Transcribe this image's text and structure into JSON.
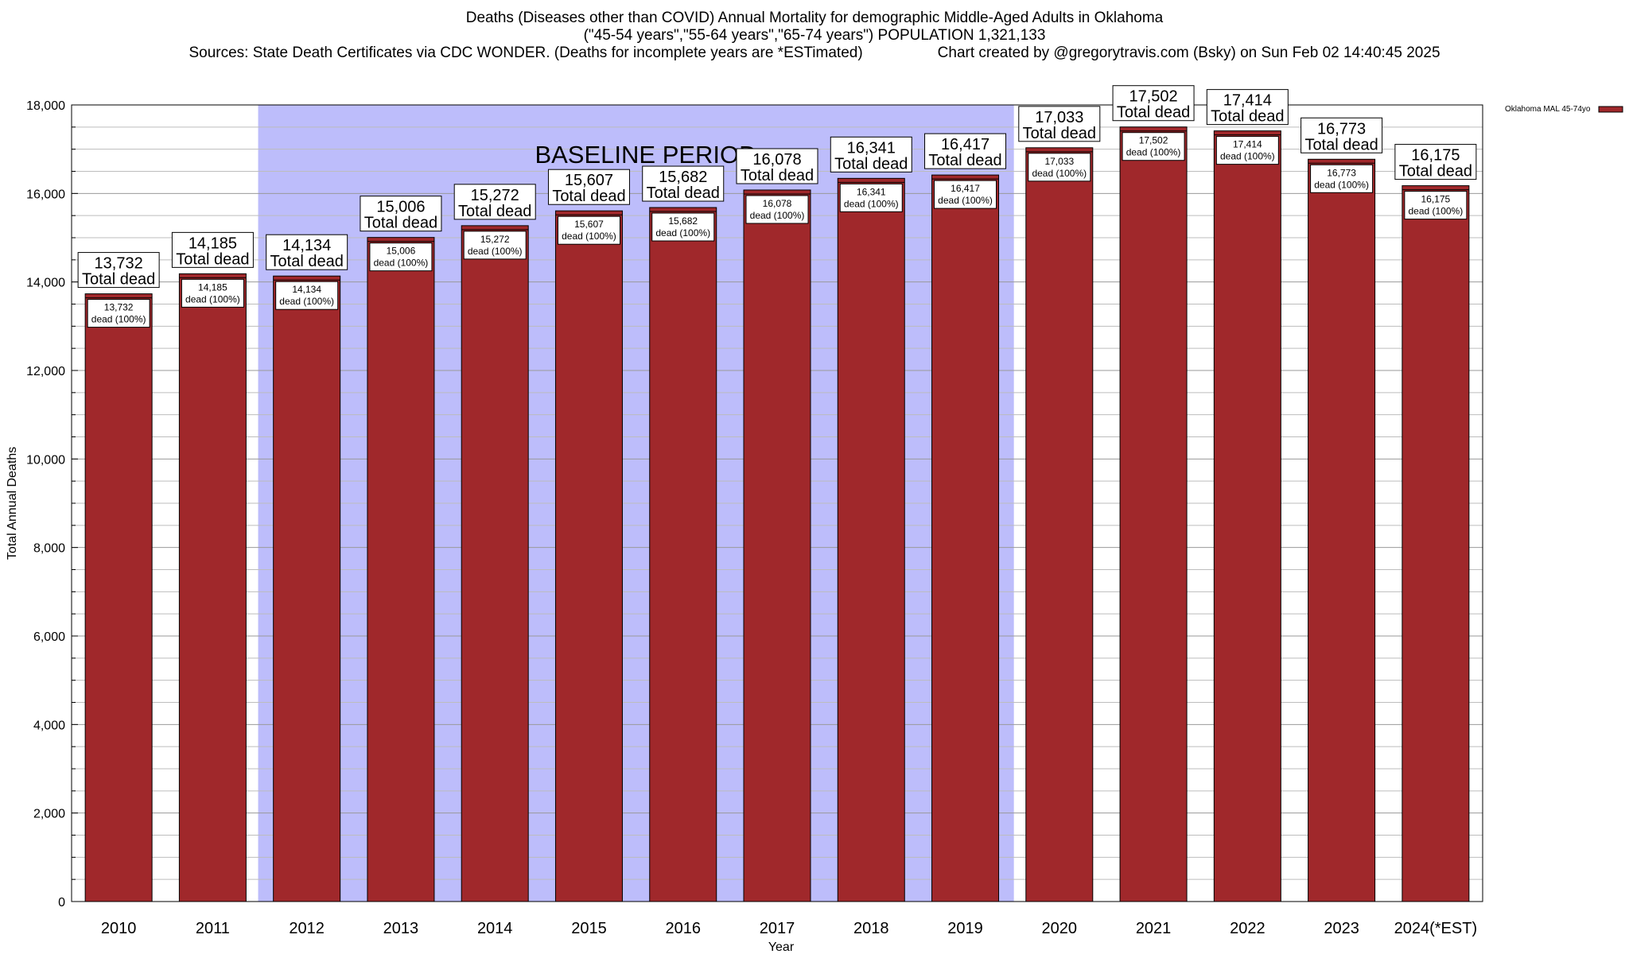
{
  "header": {
    "title_line1": "Deaths (Diseases other than COVID) Annual Mortality for demographic Middle-Aged Adults in Oklahoma",
    "title_line2": "(\"45-54 years\",\"55-64 years\",\"65-74 years\") POPULATION 1,321,133",
    "sources": "Sources: State Death Certificates via CDC WONDER. (Deaths for incomplete years are *ESTimated)",
    "credit": "Chart created by @gregorytravis.com (Bsky) on Sun Feb 02 14:40:45 2025"
  },
  "chart_data": {
    "type": "bar",
    "xlabel": "Year",
    "ylabel": "Total Annual Deaths",
    "ylim": [
      0,
      18000
    ],
    "yticks": [
      0,
      2000,
      4000,
      6000,
      8000,
      10000,
      12000,
      14000,
      16000,
      18000
    ],
    "ytick_labels": [
      "0",
      "2,000",
      "4,000",
      "6,000",
      "8,000",
      "10,000",
      "12,000",
      "14,000",
      "16,000",
      "18,000"
    ],
    "categories": [
      "2010",
      "2011",
      "2012",
      "2013",
      "2014",
      "2015",
      "2016",
      "2017",
      "2018",
      "2019",
      "2020",
      "2021",
      "2022",
      "2023",
      "2024(*EST)"
    ],
    "series": [
      {
        "name": "Oklahoma MAL 45-74yo",
        "color": "#a0282b",
        "values": [
          13732,
          14185,
          14134,
          15006,
          15272,
          15607,
          15682,
          16078,
          16341,
          16417,
          17033,
          17502,
          17414,
          16773,
          16175
        ]
      }
    ],
    "total_labels": [
      "13,732",
      "14,185",
      "14,134",
      "15,006",
      "15,272",
      "15,607",
      "15,682",
      "16,078",
      "16,341",
      "16,417",
      "17,033",
      "17,502",
      "17,414",
      "16,773",
      "16,175"
    ],
    "total_caption": "Total dead",
    "inner_caption": "dead (100%)",
    "baseline": {
      "label": "BASELINE PERIOD",
      "from": "2012",
      "to": "2019",
      "color": "#bdbdfb"
    },
    "legend": "top-right",
    "grid": true
  }
}
